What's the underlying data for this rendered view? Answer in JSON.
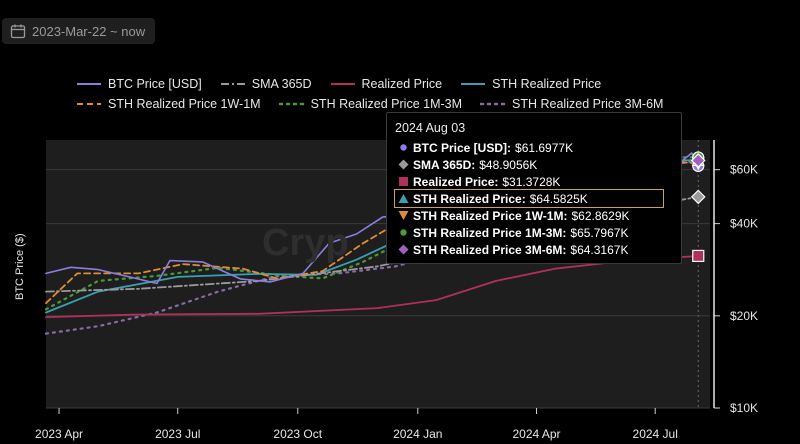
{
  "date_range": {
    "label": "2023-Mar-22 ~ now",
    "icon": "calendar-icon"
  },
  "watermark": "Cryp",
  "legend": [
    {
      "name": "BTC Price [USD]",
      "color": "#8a7fe0",
      "style": "solid"
    },
    {
      "name": "SMA 365D",
      "color": "#9a9a9a",
      "style": "dashdot"
    },
    {
      "name": "Realized Price",
      "color": "#b0305a",
      "style": "solid"
    },
    {
      "name": "STH Realized Price",
      "color": "#3aa0b0",
      "style": "solid"
    },
    {
      "name": "STH Realized Price 1W-1M",
      "color": "#e08a3a",
      "style": "dashed"
    },
    {
      "name": "STH Realized Price 1M-3M",
      "color": "#4a9a3a",
      "style": "dotted"
    },
    {
      "name": "STH Realized Price 3M-6M",
      "color": "#8a6aa0",
      "style": "dotted"
    }
  ],
  "tooltip": {
    "date": "2024 Aug 03",
    "rows": [
      {
        "label": "BTC Price [USD]",
        "value": "$61.6977K",
        "marker": "circle",
        "color": "#8a7fe0"
      },
      {
        "label": "SMA 365D",
        "value": "$48.9056K",
        "marker": "diamond",
        "color": "#9a9a9a"
      },
      {
        "label": "Realized Price",
        "value": "$31.3728K",
        "marker": "square",
        "color": "#b0305a"
      },
      {
        "label": "STH Realized Price",
        "value": "$64.5825K",
        "marker": "triangle-up",
        "color": "#3aa0b0",
        "highlight": true
      },
      {
        "label": "STH Realized Price 1W-1M",
        "value": "$62.8629K",
        "marker": "triangle-down",
        "color": "#e08a3a"
      },
      {
        "label": "STH Realized Price 1M-3M",
        "value": "$65.7967K",
        "marker": "circle",
        "color": "#4a9a3a"
      },
      {
        "label": "STH Realized Price 3M-6M",
        "value": "$64.3167K",
        "marker": "diamond",
        "color": "#a060c0"
      }
    ]
  },
  "chart_data": {
    "type": "line",
    "ylabel": "BTC Price ($)",
    "yscale": "log",
    "ylim": [
      10000,
      75000
    ],
    "yticks": [
      {
        "value": 10000,
        "label": "$10K"
      },
      {
        "value": 20000,
        "label": "$20K"
      },
      {
        "value": 40000,
        "label": "$40K"
      },
      {
        "value": 60000,
        "label": "$60K"
      }
    ],
    "xlim": [
      "2023-03-22",
      "2024-08-12"
    ],
    "xticks": [
      {
        "date": "2023-04-01",
        "label": "2023 Apr"
      },
      {
        "date": "2023-07-01",
        "label": "2023 Jul"
      },
      {
        "date": "2023-10-01",
        "label": "2023 Oct"
      },
      {
        "date": "2024-01-01",
        "label": "2024 Jan"
      },
      {
        "date": "2024-04-01",
        "label": "2024 Apr"
      },
      {
        "date": "2024-07-01",
        "label": "2024 Jul"
      }
    ],
    "series": [
      {
        "name": "BTC Price [USD]",
        "x": [
          "2023-03-22",
          "2023-04-10",
          "2023-05-01",
          "2023-05-25",
          "2023-06-15",
          "2023-06-25",
          "2023-07-20",
          "2023-08-18",
          "2023-09-10",
          "2023-10-05",
          "2023-10-25",
          "2023-11-15",
          "2023-12-05",
          "2023-12-25",
          "2024-01-15",
          "2024-02-10",
          "2024-03-01",
          "2024-03-14",
          "2024-04-15",
          "2024-05-10",
          "2024-06-05",
          "2024-06-25",
          "2024-07-05",
          "2024-07-29",
          "2024-08-03"
        ],
        "y": [
          27500,
          28800,
          28300,
          26800,
          25500,
          30300,
          30000,
          26400,
          25800,
          27500,
          34500,
          37000,
          42000,
          43000,
          42500,
          48000,
          62000,
          72000,
          63000,
          61000,
          70000,
          61000,
          56000,
          68000,
          61698
        ]
      },
      {
        "name": "SMA 365D",
        "x": [
          "2023-03-22",
          "2023-06-01",
          "2023-09-01",
          "2023-12-01",
          "2024-03-01",
          "2024-06-01",
          "2024-08-03"
        ],
        "y": [
          24000,
          24500,
          26000,
          29000,
          35000,
          44000,
          48906
        ]
      },
      {
        "name": "Realized Price",
        "x": [
          "2023-03-22",
          "2023-06-01",
          "2023-09-01",
          "2023-12-01",
          "2024-01-15",
          "2024-03-01",
          "2024-04-15",
          "2024-06-01",
          "2024-08-03"
        ],
        "y": [
          19800,
          20200,
          20300,
          21200,
          22500,
          26000,
          28500,
          30000,
          31373
        ]
      },
      {
        "name": "STH Realized Price",
        "x": [
          "2023-03-22",
          "2023-05-01",
          "2023-07-01",
          "2023-09-01",
          "2023-10-15",
          "2023-11-15",
          "2023-12-15",
          "2024-01-15",
          "2024-03-01",
          "2024-04-15",
          "2024-06-01",
          "2024-08-03"
        ],
        "y": [
          20500,
          24000,
          26800,
          27400,
          27200,
          30500,
          35000,
          38000,
          45000,
          58000,
          63000,
          64583
        ]
      },
      {
        "name": "STH Realized Price 1W-1M",
        "x": [
          "2023-03-22",
          "2023-04-15",
          "2023-06-01",
          "2023-07-05",
          "2023-08-20",
          "2023-09-15",
          "2023-10-20",
          "2023-11-20",
          "2023-12-20",
          "2024-02-01",
          "2024-03-20",
          "2024-05-01",
          "2024-06-20",
          "2024-08-03"
        ],
        "y": [
          22000,
          27500,
          27500,
          29500,
          28500,
          26500,
          28000,
          34500,
          41000,
          43000,
          60000,
          64000,
          65000,
          62863
        ]
      },
      {
        "name": "STH Realized Price 1M-3M",
        "x": [
          "2023-03-22",
          "2023-05-01",
          "2023-06-15",
          "2023-08-01",
          "2023-09-20",
          "2023-10-20",
          "2023-11-20",
          "2024-01-01",
          "2024-02-15",
          "2024-04-01",
          "2024-06-01",
          "2024-08-03"
        ],
        "y": [
          21000,
          26000,
          27000,
          28700,
          27000,
          26500,
          30000,
          37000,
          42000,
          55000,
          66000,
          65797
        ]
      },
      {
        "name": "STH Realized Price 3M-6M",
        "x": [
          "2023-03-22",
          "2023-05-01",
          "2023-06-15",
          "2023-08-01",
          "2023-09-15",
          "2023-11-01",
          "2023-12-15",
          "2024-02-01",
          "2024-04-01",
          "2024-06-01",
          "2024-08-03"
        ],
        "y": [
          17500,
          18500,
          20500,
          24000,
          27000,
          27500,
          29000,
          33000,
          42000,
          58000,
          64317
        ]
      }
    ]
  }
}
